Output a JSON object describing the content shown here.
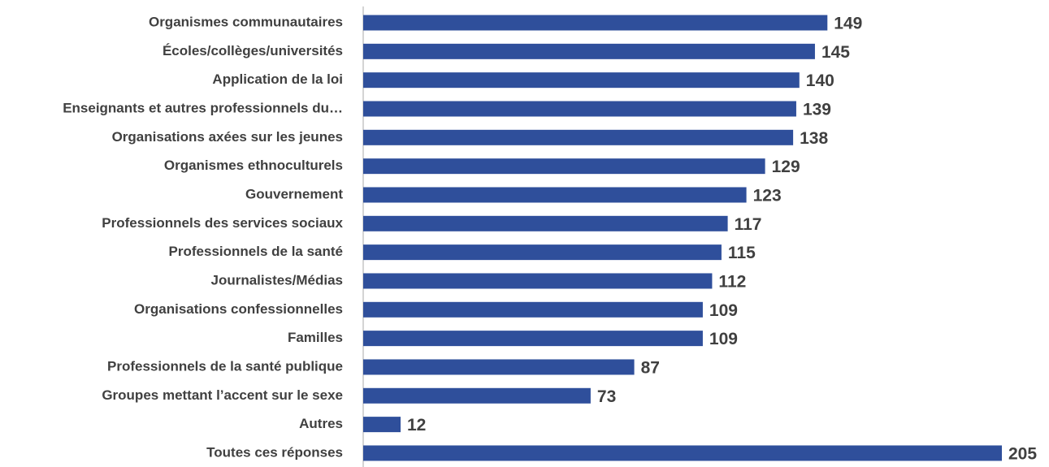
{
  "chart_data": {
    "type": "hbar",
    "categories": [
      "Organismes communautaires",
      "Écoles/collèges/universités",
      "Application de la loi",
      "Enseignants et autres professionnels du…",
      "Organisations axées sur les jeunes",
      "Organismes ethnoculturels",
      "Gouvernement",
      "Professionnels des services sociaux",
      "Professionnels de la santé",
      "Journalistes/Médias",
      "Organisations confessionnelles",
      "Familles",
      "Professionnels de la santé publique",
      "Groupes mettant l’accent sur le sexe",
      "Autres",
      "Toutes ces réponses"
    ],
    "values": [
      149,
      145,
      140,
      139,
      138,
      129,
      123,
      117,
      115,
      112,
      109,
      109,
      87,
      73,
      12,
      205
    ],
    "color": "#2f4f9b"
  }
}
